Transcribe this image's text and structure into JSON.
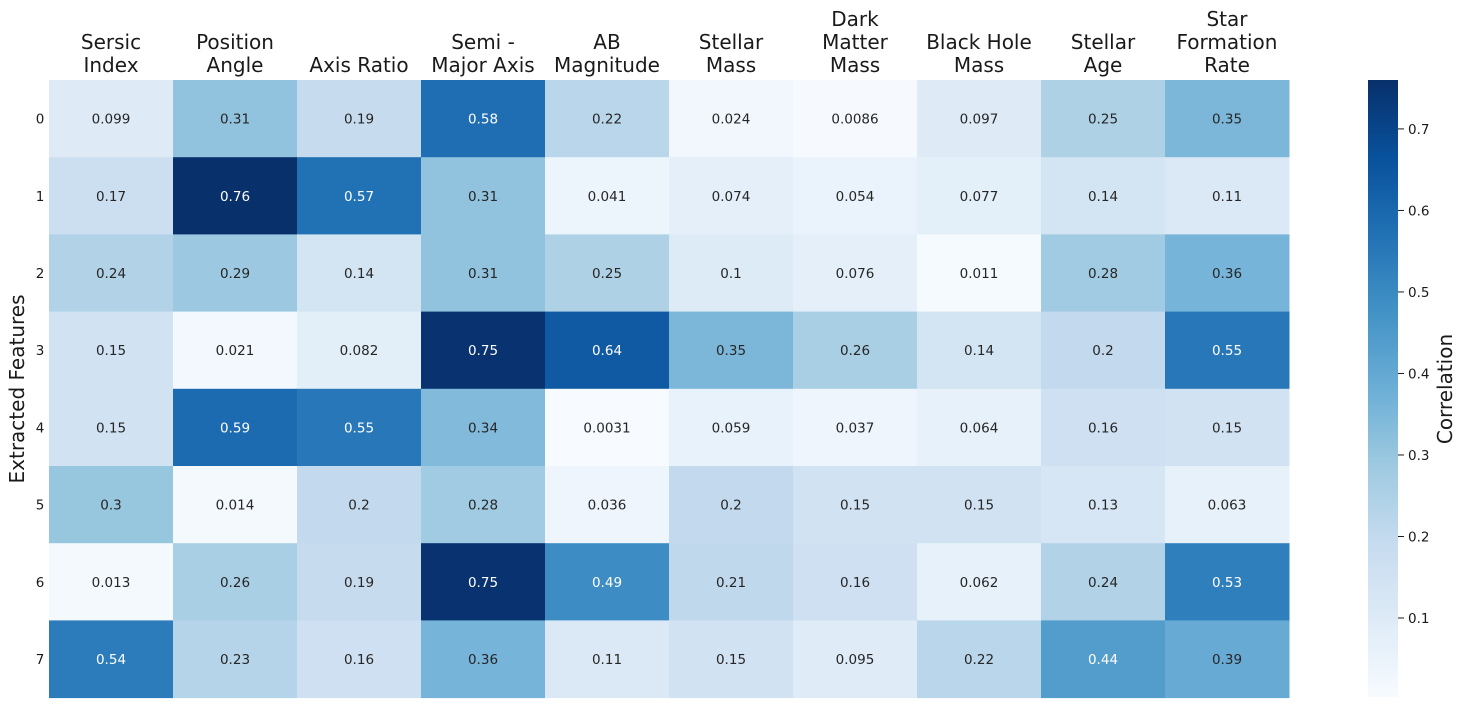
{
  "chart_data": {
    "type": "heatmap",
    "columns": [
      [
        "Sersic",
        "Index"
      ],
      [
        "Position",
        "Angle"
      ],
      [
        "Axis Ratio"
      ],
      [
        "Semi -",
        "Major Axis"
      ],
      [
        "AB",
        "Magnitude"
      ],
      [
        "Stellar",
        "Mass"
      ],
      [
        "Dark",
        "Matter",
        "Mass"
      ],
      [
        "Black Hole",
        "Mass"
      ],
      [
        "Stellar",
        "Age"
      ],
      [
        "Star",
        "Formation",
        "Rate"
      ]
    ],
    "rows": [
      "0",
      "1",
      "2",
      "3",
      "4",
      "5",
      "6",
      "7"
    ],
    "values": [
      [
        0.099,
        0.31,
        0.19,
        0.58,
        0.22,
        0.024,
        0.0086,
        0.097,
        0.25,
        0.35
      ],
      [
        0.17,
        0.76,
        0.57,
        0.31,
        0.041,
        0.074,
        0.054,
        0.077,
        0.14,
        0.11
      ],
      [
        0.24,
        0.29,
        0.14,
        0.31,
        0.25,
        0.1,
        0.076,
        0.011,
        0.28,
        0.36
      ],
      [
        0.15,
        0.021,
        0.082,
        0.75,
        0.64,
        0.35,
        0.26,
        0.14,
        0.2,
        0.55
      ],
      [
        0.15,
        0.59,
        0.55,
        0.34,
        0.0031,
        0.059,
        0.037,
        0.064,
        0.16,
        0.15
      ],
      [
        0.3,
        0.014,
        0.2,
        0.28,
        0.036,
        0.2,
        0.15,
        0.15,
        0.13,
        0.063
      ],
      [
        0.013,
        0.26,
        0.19,
        0.75,
        0.49,
        0.21,
        0.16,
        0.062,
        0.24,
        0.53
      ],
      [
        0.54,
        0.23,
        0.16,
        0.36,
        0.11,
        0.15,
        0.095,
        0.22,
        0.44,
        0.39
      ]
    ],
    "ylabel": "Extracted Features",
    "colorbar": {
      "label": "Correlation",
      "range": [
        0.0031,
        0.76
      ],
      "ticks": [
        0.1,
        0.2,
        0.3,
        0.4,
        0.5,
        0.6,
        0.7
      ],
      "colormap": "Blues"
    }
  }
}
